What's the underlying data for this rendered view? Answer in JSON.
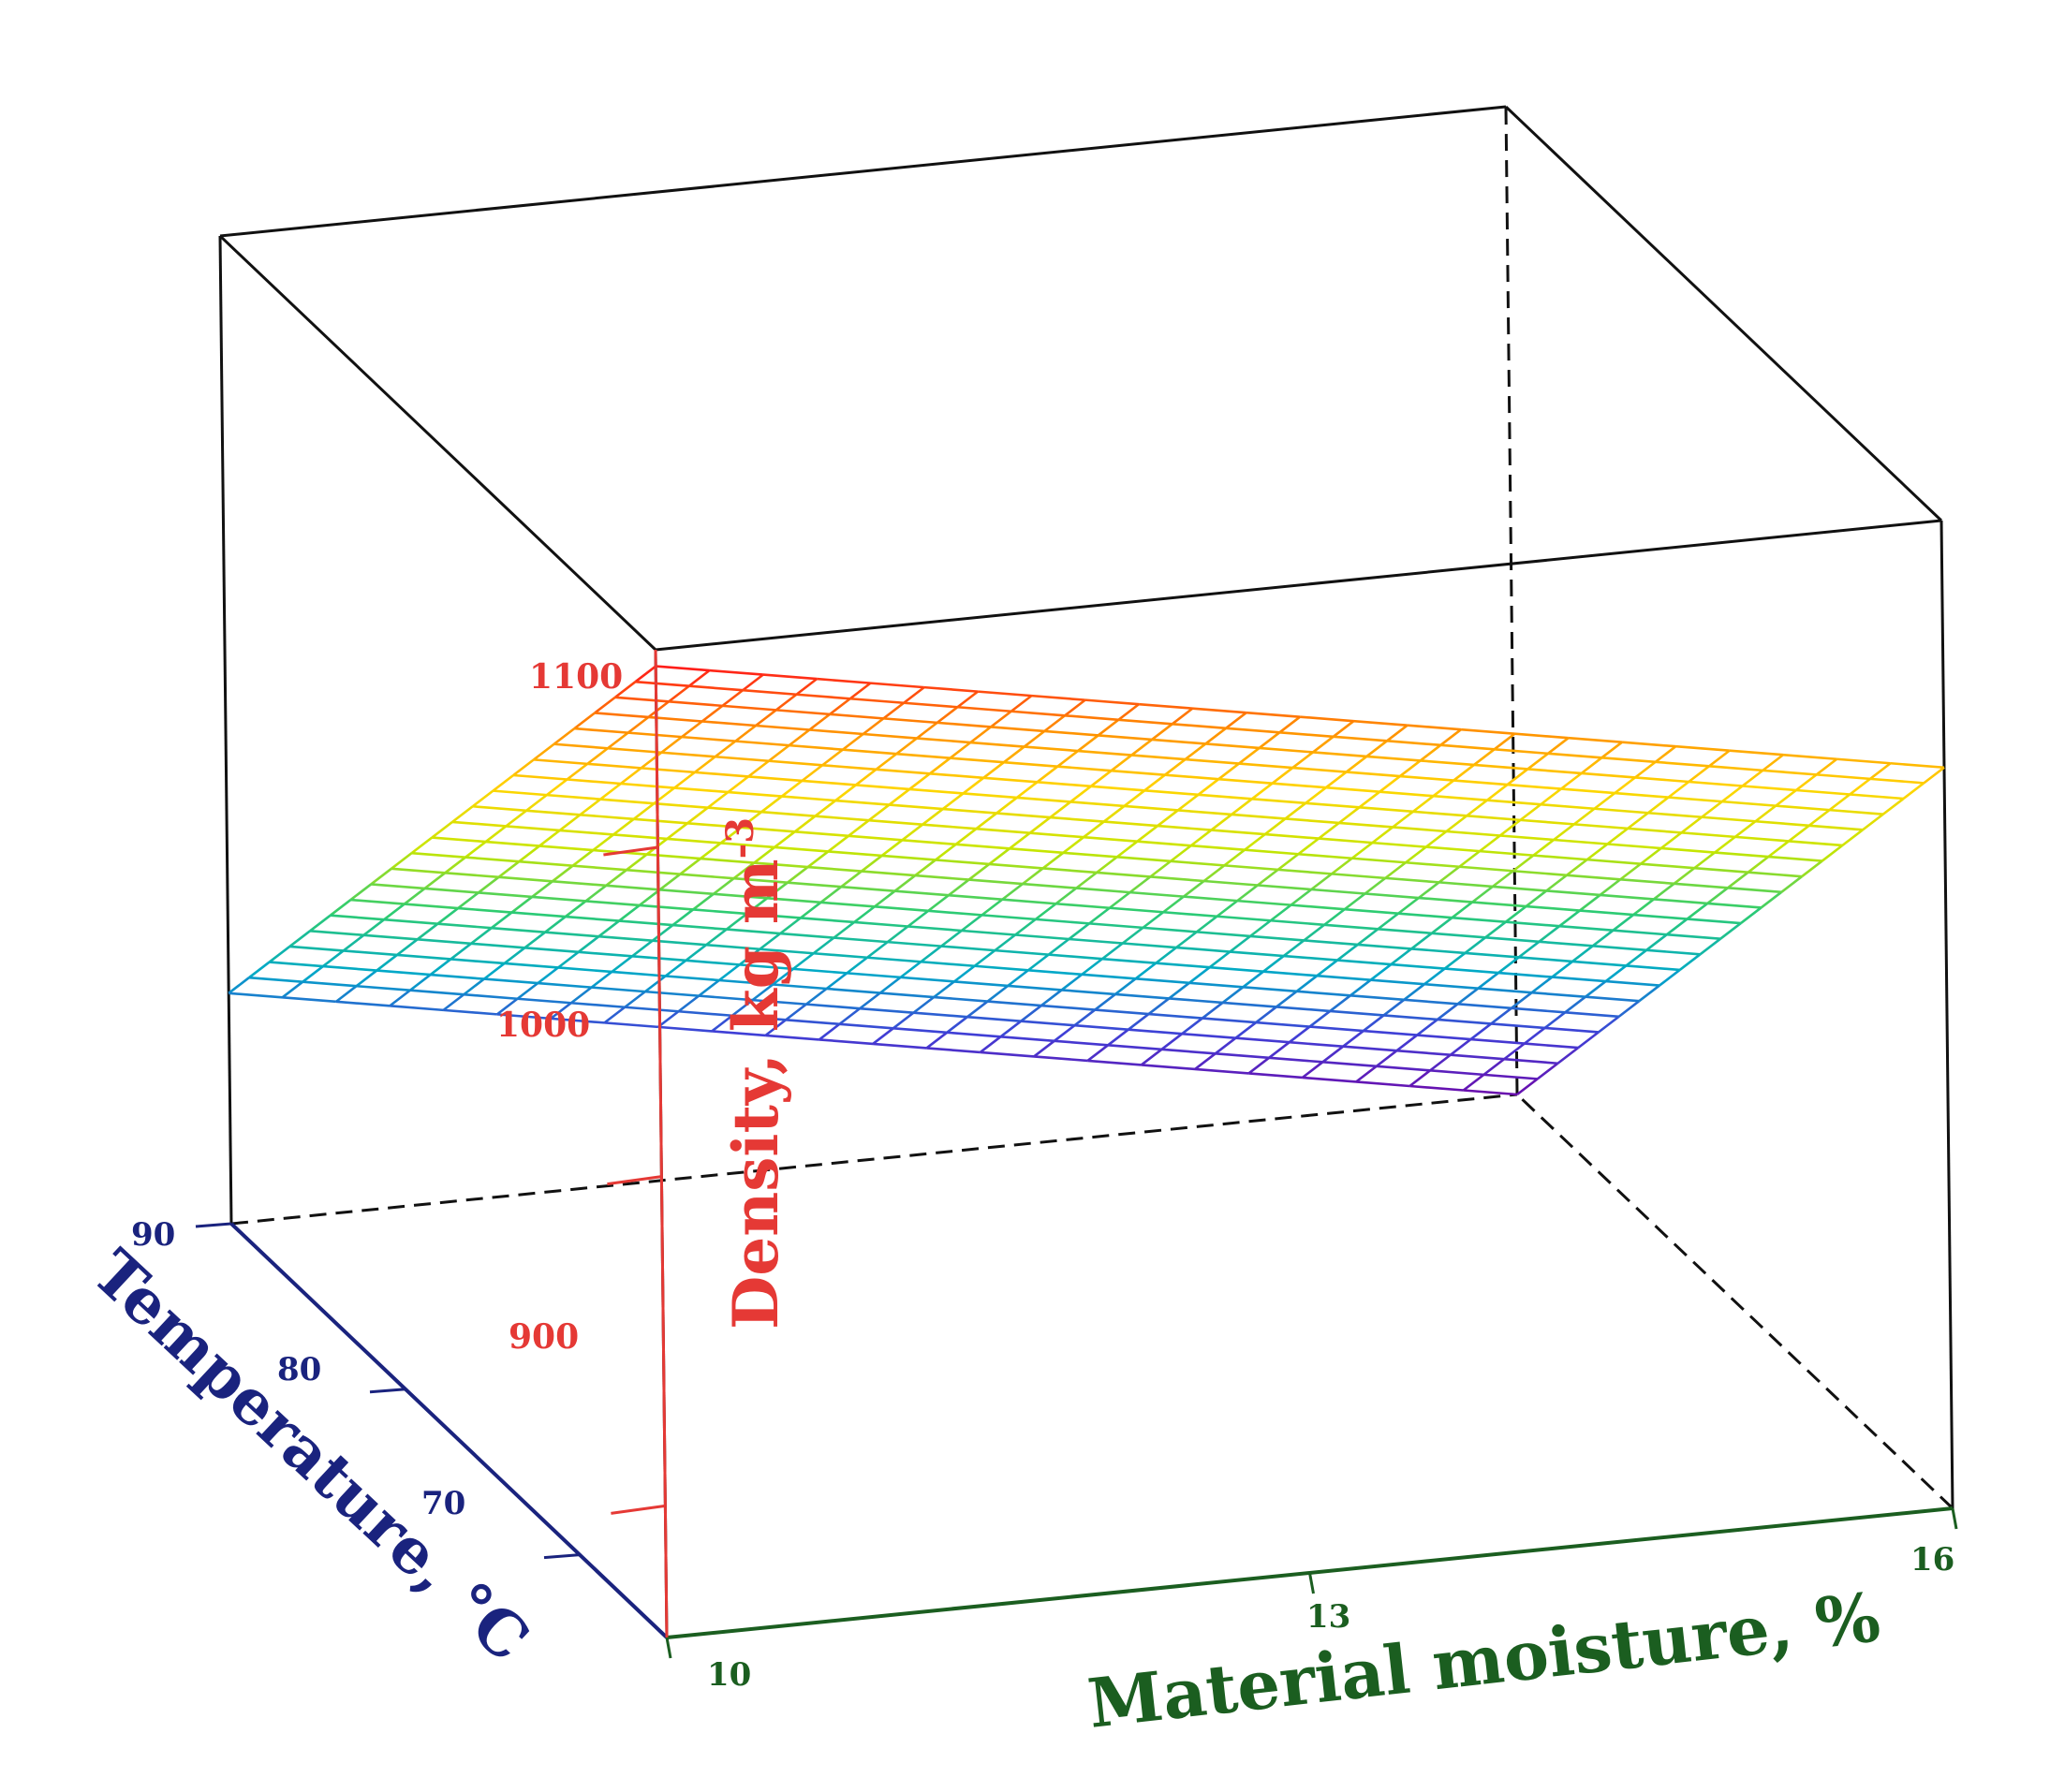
{
  "chart_data": {
    "type": "surface",
    "title": "",
    "x_axis": {
      "label": "Material moisture, %",
      "range": [
        10,
        16
      ],
      "ticks": [
        "10",
        "13",
        "16"
      ],
      "color": "#1b5e20"
    },
    "y_axis": {
      "label": "Temperature, °C",
      "range": [
        65,
        90
      ],
      "ticks": [
        "70",
        "80",
        "90"
      ],
      "color": "#1a237e"
    },
    "z_axis": {
      "label": "Density, kg m",
      "label_superscript": "-3",
      "range": [
        860,
        1160
      ],
      "ticks": [
        "900",
        "1000",
        "1100"
      ],
      "color": "#e53935"
    },
    "surface": {
      "description_model": "planar",
      "corners": [
        {
          "moisture": 10,
          "temperature": 65,
          "density": 1155
        },
        {
          "moisture": 16,
          "temperature": 65,
          "density": 1085
        },
        {
          "moisture": 10,
          "temperature": 90,
          "density": 930
        },
        {
          "moisture": 16,
          "temperature": 90,
          "density": 860
        }
      ],
      "grid_lines_moisture": 24,
      "grid_lines_temperature": 21,
      "colormap": [
        "#6a0dad",
        "#3f3fd6",
        "#00a8c8",
        "#2ecc71",
        "#c8e600",
        "#ffd500",
        "#ff8c00",
        "#ff1a1a"
      ]
    },
    "grid": false,
    "legend": "none"
  }
}
